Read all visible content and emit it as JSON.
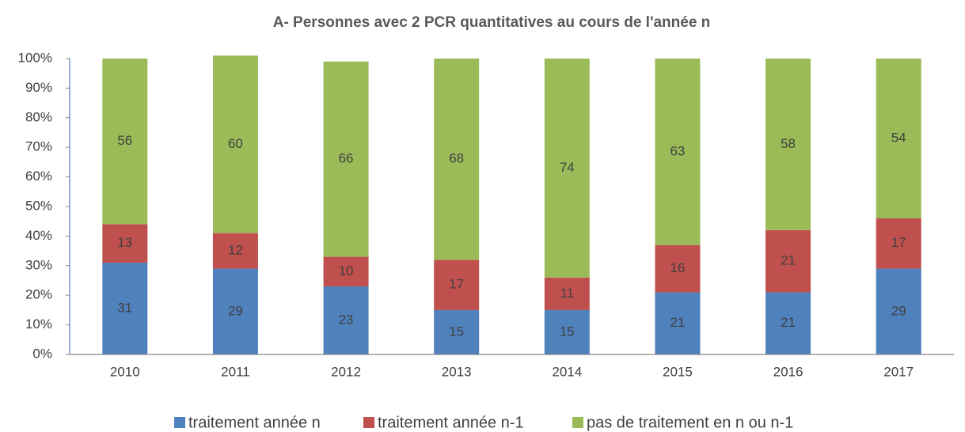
{
  "chart_data": {
    "type": "stacked_bar",
    "title": "A- Personnes avec 2 PCR quantitatives au cours de l'année n",
    "categories": [
      "2010",
      "2011",
      "2012",
      "2013",
      "2014",
      "2015",
      "2016",
      "2017"
    ],
    "series": [
      {
        "name": "traitement année n",
        "color": "#4f81bd",
        "values": [
          31,
          29,
          23,
          15,
          15,
          21,
          21,
          29
        ]
      },
      {
        "name": "traitement année n-1",
        "color": "#c0504d",
        "values": [
          13,
          12,
          10,
          17,
          11,
          16,
          21,
          17
        ]
      },
      {
        "name": "pas de traitement en n ou n-1",
        "color": "#9bbb59",
        "values": [
          56,
          60,
          66,
          68,
          74,
          63,
          58,
          54
        ]
      }
    ],
    "ylim": [
      0,
      100
    ],
    "yticks": [
      {
        "value": 0,
        "label": "0%"
      },
      {
        "value": 10,
        "label": "10%"
      },
      {
        "value": 20,
        "label": "20%"
      },
      {
        "value": 30,
        "label": "30%"
      },
      {
        "value": 40,
        "label": "40%"
      },
      {
        "value": 50,
        "label": "50%"
      },
      {
        "value": 60,
        "label": "60%"
      },
      {
        "value": 70,
        "label": "70%"
      },
      {
        "value": 80,
        "label": "80%"
      },
      {
        "value": 90,
        "label": "90%"
      },
      {
        "value": 100,
        "label": "100%"
      }
    ],
    "legend": "bottom"
  }
}
